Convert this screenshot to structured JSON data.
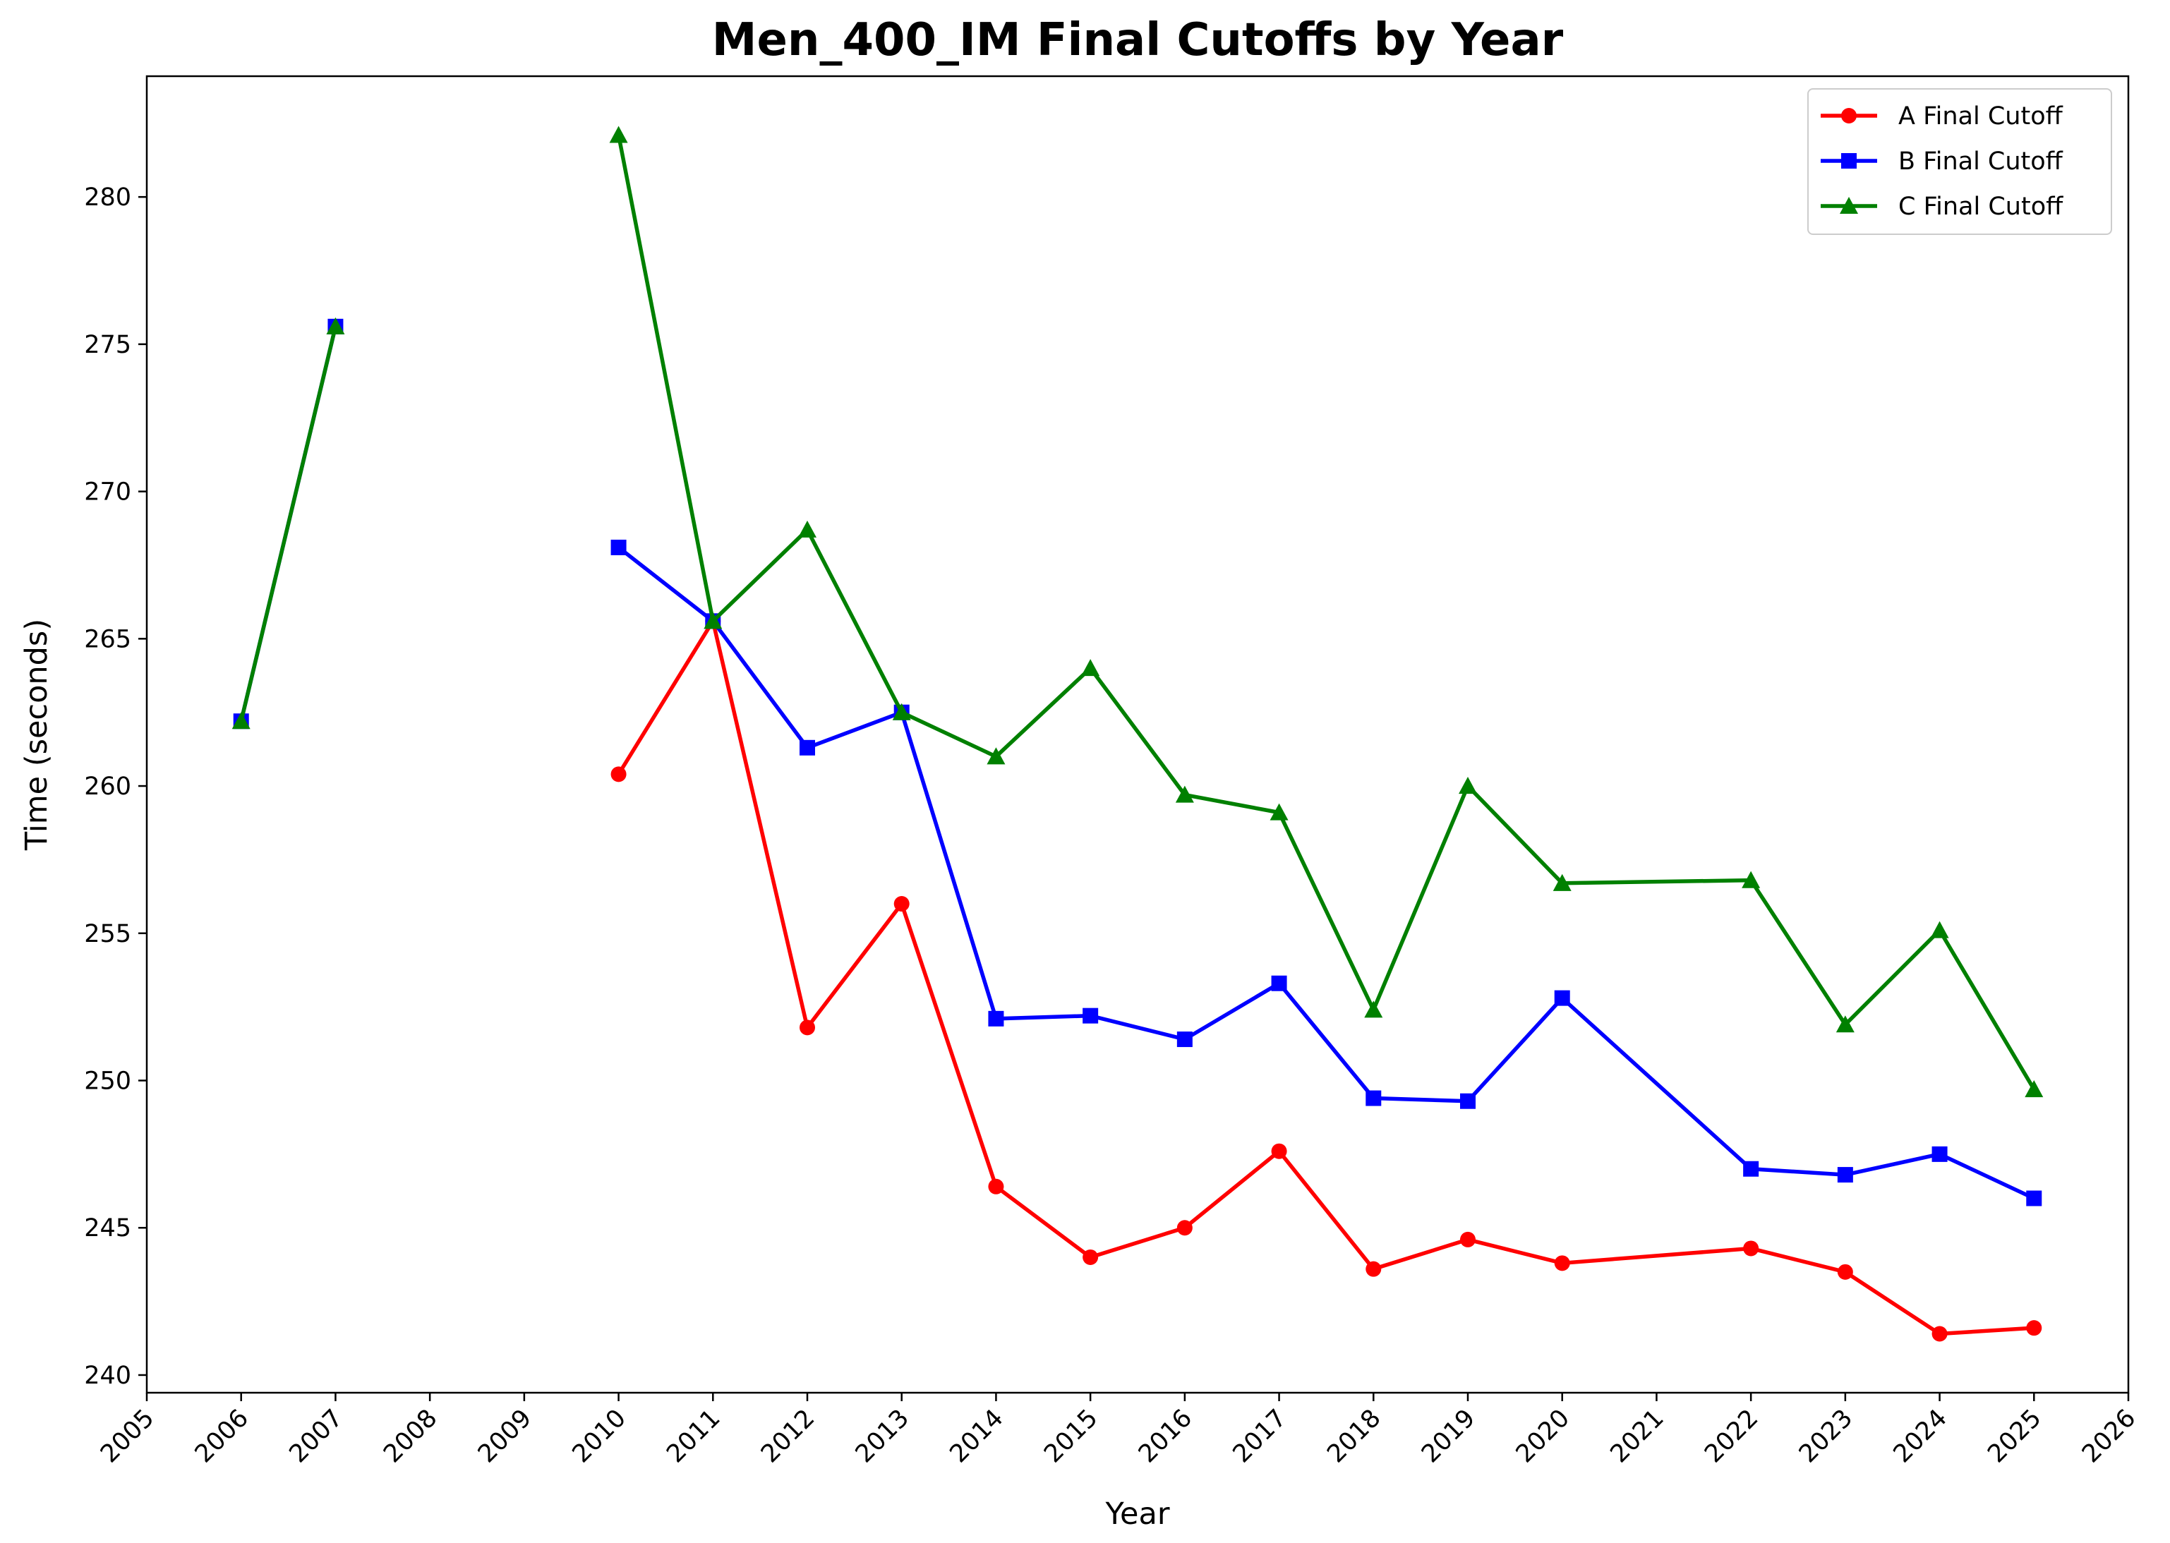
{
  "chart_data": {
    "type": "line",
    "title": "Men_400_IM Final Cutoffs by Year",
    "xlabel": "Year",
    "ylabel": "Time (seconds)",
    "x_ticks": [
      2005,
      2006,
      2007,
      2008,
      2009,
      2010,
      2011,
      2012,
      2013,
      2014,
      2015,
      2016,
      2017,
      2018,
      2019,
      2020,
      2021,
      2022,
      2023,
      2024,
      2025,
      2026
    ],
    "x_tick_labels": [
      "2005",
      "2006",
      "2007",
      "2008",
      "2009",
      "2010",
      "2011",
      "2012",
      "2013",
      "2014",
      "2015",
      "2016",
      "2017",
      "2018",
      "2019",
      "2020",
      "2021",
      "2022",
      "2023",
      "2024",
      "2025",
      "2026"
    ],
    "y_ticks": [
      240,
      245,
      250,
      255,
      260,
      265,
      270,
      275,
      280
    ],
    "y_tick_labels": [
      "240",
      "245",
      "250",
      "255",
      "260",
      "265",
      "270",
      "275",
      "280"
    ],
    "xlim": [
      2005,
      2026
    ],
    "ylim": [
      239.4,
      284.1
    ],
    "grid": false,
    "legend_position": "top-right",
    "series": [
      {
        "name": "A Final Cutoff",
        "color": "#ff0000",
        "marker": "circle",
        "segments": [
          [
            [
              2010,
              260.4
            ],
            [
              2011,
              265.6
            ],
            [
              2012,
              251.8
            ],
            [
              2013,
              256.0
            ],
            [
              2014,
              246.4
            ],
            [
              2015,
              244.0
            ],
            [
              2016,
              245.0
            ],
            [
              2017,
              247.6
            ],
            [
              2018,
              243.6
            ],
            [
              2019,
              244.6
            ],
            [
              2020,
              243.8
            ],
            [
              2022,
              244.3
            ],
            [
              2023,
              243.5
            ],
            [
              2024,
              241.4
            ],
            [
              2025,
              241.6
            ]
          ]
        ]
      },
      {
        "name": "B Final Cutoff",
        "color": "#0000ff",
        "marker": "square",
        "segments": [
          [
            [
              2006,
              262.2
            ],
            [
              2007,
              275.6
            ]
          ],
          [
            [
              2010,
              268.1
            ],
            [
              2011,
              265.6
            ],
            [
              2012,
              261.3
            ],
            [
              2013,
              262.5
            ],
            [
              2014,
              252.1
            ],
            [
              2015,
              252.2
            ],
            [
              2016,
              251.4
            ],
            [
              2017,
              253.3
            ],
            [
              2018,
              249.4
            ],
            [
              2019,
              249.3
            ],
            [
              2020,
              252.8
            ],
            [
              2022,
              247.0
            ],
            [
              2023,
              246.8
            ],
            [
              2024,
              247.5
            ],
            [
              2025,
              246.0
            ]
          ]
        ]
      },
      {
        "name": "C Final Cutoff",
        "color": "#008000",
        "marker": "triangle",
        "segments": [
          [
            [
              2006,
              262.2
            ],
            [
              2007,
              275.6
            ]
          ],
          [
            [
              2010,
              282.1
            ],
            [
              2011,
              265.6
            ],
            [
              2012,
              268.7
            ],
            [
              2013,
              262.5
            ],
            [
              2014,
              261.0
            ],
            [
              2015,
              264.0
            ],
            [
              2016,
              259.7
            ],
            [
              2017,
              259.1
            ],
            [
              2018,
              252.4
            ],
            [
              2019,
              260.0
            ],
            [
              2020,
              256.7
            ],
            [
              2022,
              256.8
            ],
            [
              2023,
              251.9
            ],
            [
              2024,
              255.1
            ],
            [
              2025,
              249.7
            ]
          ]
        ]
      }
    ]
  }
}
